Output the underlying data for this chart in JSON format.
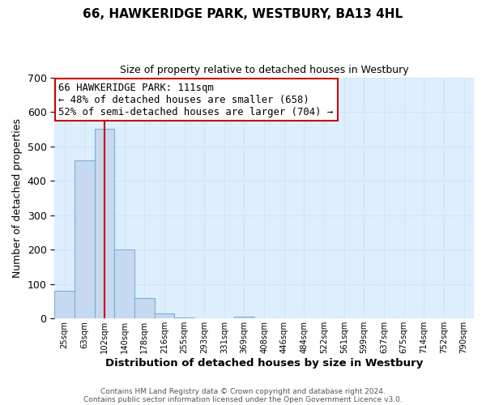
{
  "title": "66, HAWKERIDGE PARK, WESTBURY, BA13 4HL",
  "subtitle": "Size of property relative to detached houses in Westbury",
  "bar_labels": [
    "25sqm",
    "63sqm",
    "102sqm",
    "140sqm",
    "178sqm",
    "216sqm",
    "255sqm",
    "293sqm",
    "331sqm",
    "369sqm",
    "408sqm",
    "446sqm",
    "484sqm",
    "522sqm",
    "561sqm",
    "599sqm",
    "637sqm",
    "675sqm",
    "714sqm",
    "752sqm",
    "790sqm"
  ],
  "bar_values": [
    80,
    460,
    550,
    200,
    60,
    15,
    3,
    0,
    0,
    5,
    0,
    0,
    0,
    0,
    0,
    0,
    0,
    0,
    0,
    0,
    0
  ],
  "bar_color": "#c6d9f0",
  "bar_edge_color": "#7bafd4",
  "vline_x_index": 2,
  "vline_color": "#cc0000",
  "ylabel": "Number of detached properties",
  "xlabel": "Distribution of detached houses by size in Westbury",
  "ylim": [
    0,
    700
  ],
  "yticks": [
    0,
    100,
    200,
    300,
    400,
    500,
    600,
    700
  ],
  "annotation_title": "66 HAWKERIDGE PARK: 111sqm",
  "annotation_line1": "← 48% of detached houses are smaller (658)",
  "annotation_line2": "52% of semi-detached houses are larger (704) →",
  "footer1": "Contains HM Land Registry data © Crown copyright and database right 2024.",
  "footer2": "Contains public sector information licensed under the Open Government Licence v3.0.",
  "grid_color": "#d0e4f5",
  "background_color": "#ddeeff"
}
